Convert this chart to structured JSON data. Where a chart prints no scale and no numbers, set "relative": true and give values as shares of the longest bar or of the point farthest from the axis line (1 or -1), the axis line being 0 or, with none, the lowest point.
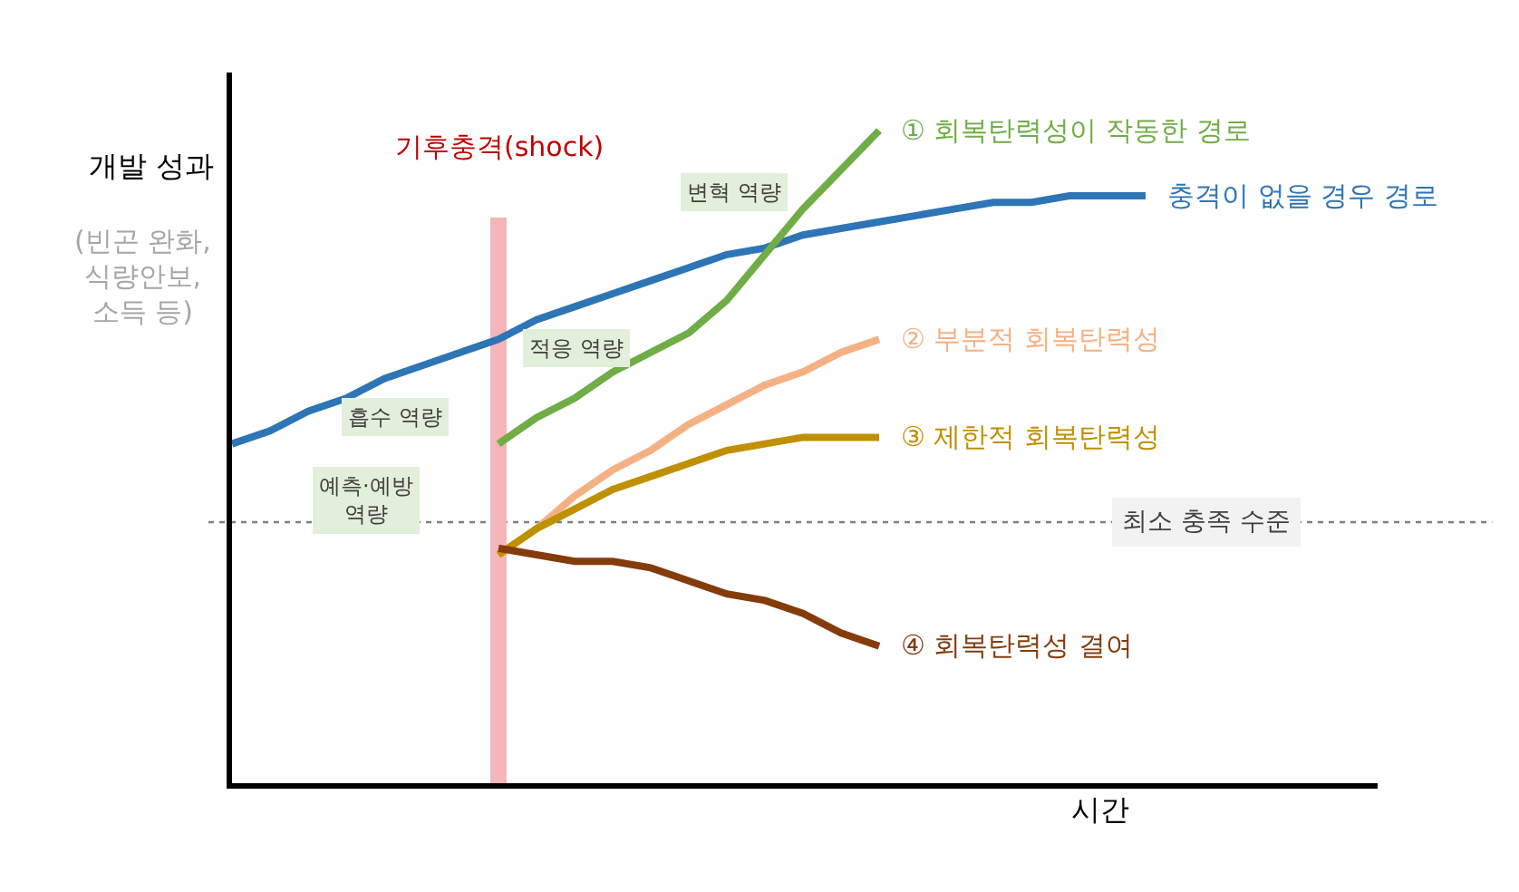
{
  "chart_data": {
    "type": "line",
    "relative": true,
    "xlabel": "시간",
    "ylabel": "개발 성과",
    "categories": [
      null,
      null,
      null,
      null,
      null,
      null,
      null,
      null,
      null,
      null,
      null,
      null,
      null,
      null,
      null,
      null,
      null,
      null,
      null,
      null,
      null,
      null,
      null,
      null,
      null
    ],
    "series": [
      {
        "name": "충격이 없을 경우 경로",
        "color": "#2e75b6",
        "values": [
          0.52,
          0.54,
          0.57,
          0.59,
          0.62,
          0.64,
          0.66,
          0.68,
          0.71,
          0.73,
          0.75,
          0.77,
          0.79,
          0.81,
          0.82,
          0.84,
          0.85,
          0.86,
          0.87,
          0.88,
          0.89,
          0.89,
          0.9,
          0.9,
          0.9
        ]
      },
      {
        "name": "① 회복탄력성이 작동한 경로",
        "color": "#70ad47",
        "values": [
          null,
          null,
          null,
          null,
          null,
          null,
          null,
          0.52,
          0.56,
          0.59,
          0.63,
          0.66,
          0.69,
          0.74,
          0.81,
          0.88,
          0.94,
          1,
          null,
          null,
          null,
          null,
          null,
          null,
          null
        ]
      },
      {
        "name": "② 부분적 회복탄력성",
        "color": "#f4b183",
        "values": [
          null,
          null,
          null,
          null,
          null,
          null,
          null,
          0.35,
          0.39,
          0.44,
          0.48,
          0.51,
          0.55,
          0.58,
          0.61,
          0.63,
          0.66,
          0.68,
          null,
          null,
          null,
          null,
          null,
          null,
          null
        ]
      },
      {
        "name": "③ 제한적 회복탄력성",
        "color": "#bf9000",
        "values": [
          null,
          null,
          null,
          null,
          null,
          null,
          null,
          0.35,
          0.39,
          0.42,
          0.45,
          0.47,
          0.49,
          0.51,
          0.52,
          0.53,
          0.53,
          0.53,
          null,
          null,
          null,
          null,
          null,
          null,
          null
        ]
      },
      {
        "name": "④ 회복탄력성 결여",
        "color": "#843c0c",
        "values": [
          null,
          null,
          null,
          null,
          null,
          null,
          null,
          0.36,
          0.35,
          0.34,
          0.34,
          0.33,
          0.31,
          0.29,
          0.28,
          0.26,
          0.23,
          0.21,
          null,
          null,
          null,
          null,
          null,
          null,
          null
        ]
      }
    ],
    "ref_lines": [
      {
        "axis": "y",
        "value": 0.4,
        "label": "최소 충족 수준",
        "color": "#7f7f7f",
        "line_style": "dotted"
      }
    ],
    "annotations": [
      "기후충격(shock)",
      "(빈곤 완화,\n식량안보,\n소득 등)",
      "변혁 역량",
      "적응 역량",
      "흡수 역량",
      "예측·예방\n역량"
    ]
  }
}
